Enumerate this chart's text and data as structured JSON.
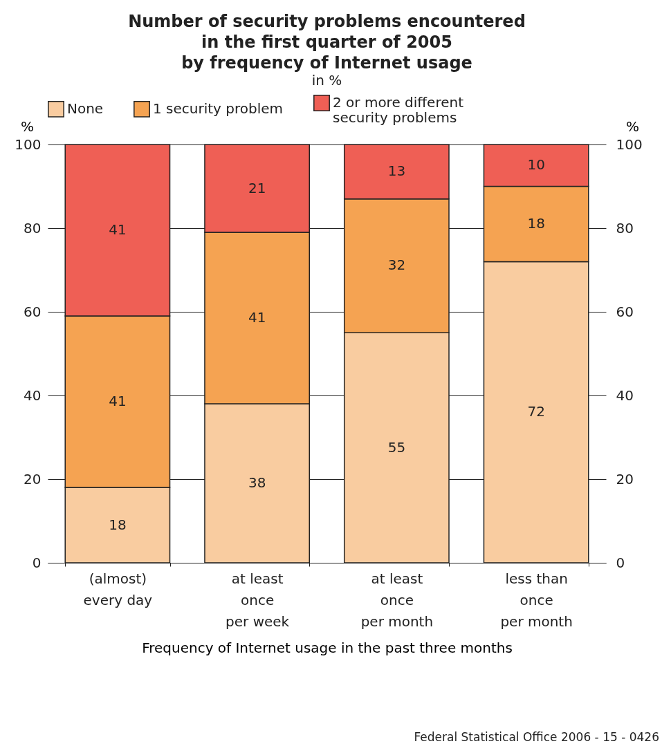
{
  "chart_data": {
    "type": "bar",
    "stacked": true,
    "title": "Number of security problems encountered\nin the first quarter of 2005\nby frequency of Internet usage",
    "subtitle": "in %",
    "xlabel": "Frequency of Internet usage in the past three months",
    "ylabel": "%",
    "y2label": "%",
    "categories": [
      "(almost)\nevery day",
      "at least\nonce\nper week",
      "at least\nonce\nper month",
      "less than\nonce\nper month"
    ],
    "series": [
      {
        "name": "None",
        "color": "#f9cca0",
        "values": [
          18,
          38,
          55,
          72
        ]
      },
      {
        "name": "1 security problem",
        "color": "#f5a352",
        "values": [
          41,
          41,
          32,
          18
        ]
      },
      {
        "name": "2 or more different\nsecurity problems",
        "color": "#ef5f55",
        "values": [
          41,
          21,
          13,
          10
        ]
      }
    ],
    "ylim": [
      0,
      100
    ],
    "yticks": [
      0,
      20,
      40,
      60,
      80,
      100
    ],
    "y2lim": [
      0,
      100
    ],
    "y2ticks": [
      0,
      20,
      40,
      60,
      80,
      100
    ],
    "grid": "y",
    "legend": "top",
    "data_labels": true,
    "annotations": [
      "Federal Statistical Office 2006 - 15 - 0426"
    ]
  }
}
